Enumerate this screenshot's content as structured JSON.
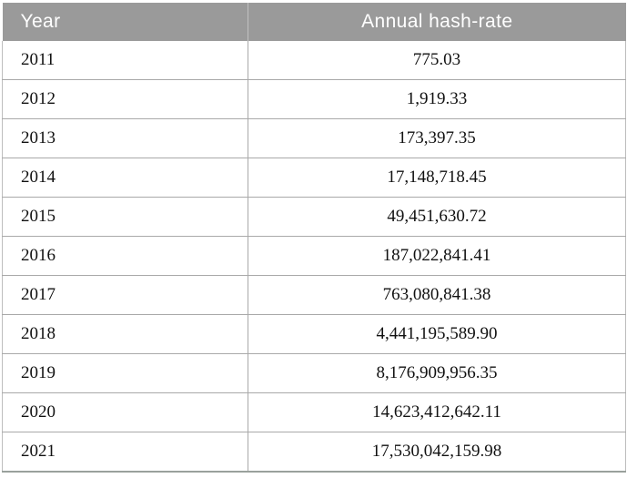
{
  "table": {
    "columns": [
      "Year",
      "Annual hash-rate"
    ],
    "rows": [
      {
        "year": "2011",
        "value": "775.03"
      },
      {
        "year": "2012",
        "value": "1,919.33"
      },
      {
        "year": "2013",
        "value": "173,397.35"
      },
      {
        "year": "2014",
        "value": "17,148,718.45"
      },
      {
        "year": "2015",
        "value": "49,451,630.72"
      },
      {
        "year": "2016",
        "value": "187,022,841.41"
      },
      {
        "year": "2017",
        "value": "763,080,841.38"
      },
      {
        "year": "2018",
        "value": "4,441,195,589.90"
      },
      {
        "year": "2019",
        "value": "8,176,909,956.35"
      },
      {
        "year": "2020",
        "value": "14,623,412,642.11"
      },
      {
        "year": "2021",
        "value": "17,530,042,159.98"
      }
    ],
    "colors": {
      "header_bg": "#9a9a9a",
      "header_text": "#ffffff",
      "row_border": "#a9a9a9",
      "bottom_border": "#9aa19c",
      "body_text": "#111111"
    }
  }
}
